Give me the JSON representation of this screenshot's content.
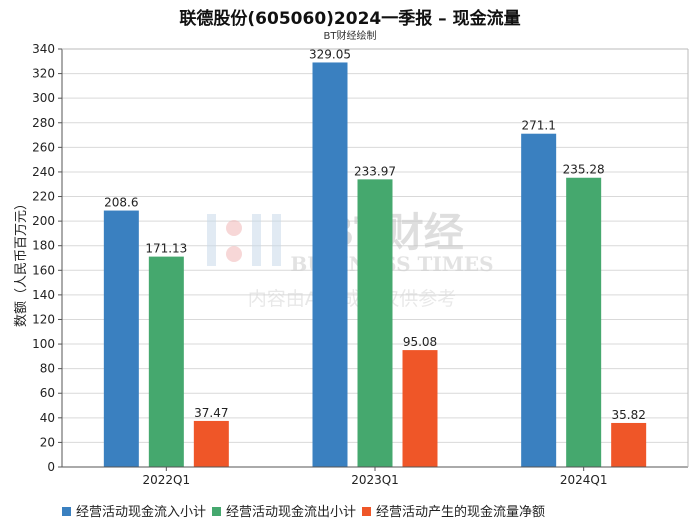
{
  "title": "联德股份(605060)2024一季报 – 现金流量",
  "subtitle": "BT财经绘制",
  "watermark": {
    "brand": "BT财经",
    "sub": "BUSINESS TIMES",
    "notice": "内容由AI生成，仅供参考"
  },
  "colors": {
    "series": [
      "#3a80c0",
      "#45a86e",
      "#ef5628"
    ],
    "grid": "#d9d9d9",
    "axis": "#555555"
  },
  "chart_data": {
    "type": "bar",
    "title": "联德股份(605060)2024一季报 – 现金流量",
    "ylabel": "数额（人民币百万元）",
    "xlabel": "",
    "ylim": [
      0,
      340
    ],
    "ytick_step": 20,
    "grid": true,
    "legend_position": "bottom",
    "categories": [
      "2022Q1",
      "2023Q1",
      "2024Q1"
    ],
    "series": [
      {
        "name": "经营活动现金流入小计",
        "values": [
          208.6,
          329.05,
          271.1
        ]
      },
      {
        "name": "经营活动现金流出小计",
        "values": [
          171.13,
          233.97,
          235.28
        ]
      },
      {
        "name": "经营活动产生的现金流量净额",
        "values": [
          37.47,
          95.08,
          35.82
        ]
      }
    ]
  }
}
